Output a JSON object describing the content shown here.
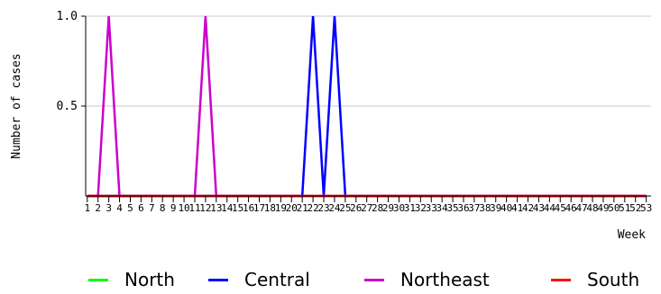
{
  "chart_data": {
    "type": "line",
    "xlabel": "Week",
    "ylabel": "Number of cases",
    "ylim": [
      0,
      1.0
    ],
    "yticks": [
      0.5,
      1.0
    ],
    "ytick_labels": [
      "0.5",
      "1.0"
    ],
    "x": [
      1,
      2,
      3,
      4,
      5,
      6,
      7,
      8,
      9,
      10,
      11,
      12,
      13,
      14,
      15,
      16,
      17,
      18,
      19,
      20,
      21,
      22,
      23,
      24,
      25,
      26,
      27,
      28,
      29,
      30,
      31,
      32,
      33,
      34,
      35,
      36,
      37,
      38,
      39,
      40,
      41,
      42,
      43,
      44,
      45,
      46,
      47,
      48,
      49,
      50,
      51,
      52,
      53
    ],
    "grid": "horizontal",
    "legend_position": "bottom",
    "series": [
      {
        "name": "North",
        "color": "#00ff00",
        "values": [
          0,
          0,
          0,
          0,
          0,
          0,
          0,
          0,
          0,
          0,
          0,
          0,
          0,
          0,
          0,
          0,
          0,
          0,
          0,
          0,
          0,
          0,
          0,
          0,
          0,
          0,
          0,
          0,
          0,
          0,
          0,
          0,
          0,
          0,
          0,
          0,
          0,
          0,
          0,
          0,
          0,
          0,
          0,
          0,
          0,
          0,
          0,
          0,
          0,
          0,
          0,
          0,
          0
        ]
      },
      {
        "name": "Central",
        "color": "#0000ff",
        "values": [
          0,
          0,
          0,
          0,
          0,
          0,
          0,
          0,
          0,
          0,
          0,
          0,
          0,
          0,
          0,
          0,
          0,
          0,
          0,
          0,
          0,
          1,
          0,
          1,
          0,
          0,
          0,
          0,
          0,
          0,
          0,
          0,
          0,
          0,
          0,
          0,
          0,
          0,
          0,
          0,
          0,
          0,
          0,
          0,
          0,
          0,
          0,
          0,
          0,
          0,
          0,
          0,
          0
        ]
      },
      {
        "name": "Northeast",
        "color": "#cc00cc",
        "values": [
          0,
          0,
          1,
          0,
          0,
          0,
          0,
          0,
          0,
          0,
          0,
          1,
          0,
          0,
          0,
          0,
          0,
          0,
          0,
          0,
          0,
          0,
          0,
          0,
          0,
          0,
          0,
          0,
          0,
          0,
          0,
          0,
          0,
          0,
          0,
          0,
          0,
          0,
          0,
          0,
          0,
          0,
          0,
          0,
          0,
          0,
          0,
          0,
          0,
          0,
          0,
          0,
          0
        ]
      },
      {
        "name": "South",
        "color": "#ff0000",
        "values": [
          0,
          0,
          0,
          0,
          0,
          0,
          0,
          0,
          0,
          0,
          0,
          0,
          0,
          0,
          0,
          0,
          0,
          0,
          0,
          0,
          0,
          0,
          0,
          0,
          0,
          0,
          0,
          0,
          0,
          0,
          0,
          0,
          0,
          0,
          0,
          0,
          0,
          0,
          0,
          0,
          0,
          0,
          0,
          0,
          0,
          0,
          0,
          0,
          0,
          0,
          0,
          0,
          0
        ]
      }
    ]
  }
}
